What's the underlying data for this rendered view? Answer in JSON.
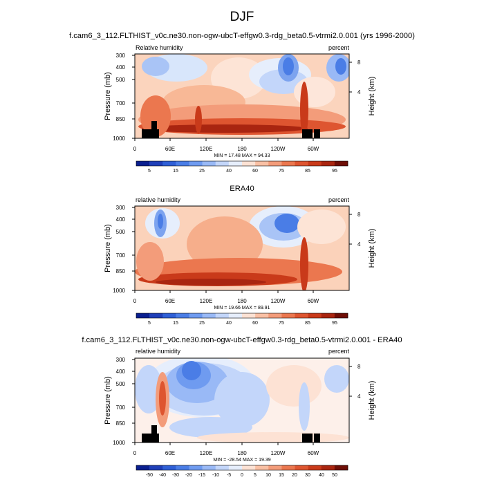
{
  "figure": {
    "title": "DJF"
  },
  "chart_data": [
    {
      "type": "heatmap",
      "title": "f.cam6_3_112.FLTHIST_v0c.ne30.non-ogw-ubcT-effgw0.3-rdg_beta0.5-vtrmi2.0.001 (yrs 1996-2000)",
      "left_label": "Relative humidity",
      "right_label": "percent",
      "ylabel": "Pressure (mb)",
      "ylabel_right": "Height (km)",
      "x_ticks": [
        "0",
        "60E",
        "120E",
        "180",
        "120W",
        "60W"
      ],
      "y_ticks": [
        "300",
        "400",
        "500",
        "700",
        "850",
        "1000"
      ],
      "y2_ticks": [
        "8",
        "4"
      ],
      "stats": "MIN =  17.48  MAX =  94.33",
      "min": 17.48,
      "max": 94.33,
      "colorbar_labels": [
        "5",
        "15",
        "25",
        "40",
        "60",
        "75",
        "85",
        "95"
      ],
      "colorbar_colors": [
        "#0a1f8f",
        "#1f3fb8",
        "#2f5fd6",
        "#4a7de6",
        "#6f9bf0",
        "#99b9f6",
        "#c3d6fa",
        "#e6eefc",
        "#fde2d4",
        "#f9c0a4",
        "#f39c7a",
        "#eb774f",
        "#de5530",
        "#c93a1a",
        "#a92510",
        "#6e0e06"
      ],
      "note": "Black boxes mark topography near 30E and 60W-70W"
    },
    {
      "type": "heatmap",
      "title": "ERA40",
      "left_label": "relative humidity",
      "right_label": "percent",
      "ylabel": "Pressure (mb)",
      "ylabel_right": "Height (km)",
      "x_ticks": [
        "0",
        "60E",
        "120E",
        "180",
        "120W",
        "60W"
      ],
      "y_ticks": [
        "300",
        "400",
        "500",
        "700",
        "850",
        "1000"
      ],
      "y2_ticks": [
        "8",
        "4"
      ],
      "stats": "MIN =  19.66  MAX =  89.91",
      "min": 19.66,
      "max": 89.91,
      "colorbar_labels": [
        "5",
        "15",
        "25",
        "40",
        "60",
        "75",
        "85",
        "95"
      ],
      "colorbar_colors": [
        "#0a1f8f",
        "#1f3fb8",
        "#2f5fd6",
        "#4a7de6",
        "#6f9bf0",
        "#99b9f6",
        "#c3d6fa",
        "#e6eefc",
        "#fde2d4",
        "#f9c0a4",
        "#f39c7a",
        "#eb774f",
        "#de5530",
        "#c93a1a",
        "#a92510",
        "#6e0e06"
      ]
    },
    {
      "type": "heatmap",
      "title": "f.cam6_3_112.FLTHIST_v0c.ne30.non-ogw-ubcT-effgw0.3-rdg_beta0.5-vtrmi2.0.001 - ERA40",
      "left_label": "relative humidity",
      "right_label": "percent",
      "ylabel": "Pressure (mb)",
      "ylabel_right": "Height (km)",
      "x_ticks": [
        "0",
        "60E",
        "120E",
        "180",
        "120W",
        "60W"
      ],
      "y_ticks": [
        "300",
        "400",
        "500",
        "700",
        "850",
        "1000"
      ],
      "y2_ticks": [
        "8",
        "4"
      ],
      "stats": "MIN = -28.54  MAX =  19.39",
      "min": -28.54,
      "max": 19.39,
      "colorbar_labels": [
        "-50",
        "-40",
        "-30",
        "-20",
        "-15",
        "-10",
        "-5",
        "0",
        "5",
        "10",
        "15",
        "20",
        "30",
        "40",
        "50"
      ],
      "colorbar_colors": [
        "#0a1f8f",
        "#1f3fb8",
        "#2f5fd6",
        "#4a7de6",
        "#6f9bf0",
        "#99b9f6",
        "#c3d6fa",
        "#e6eefc",
        "#fde2d4",
        "#f9c0a4",
        "#f39c7a",
        "#eb774f",
        "#de5530",
        "#c93a1a",
        "#a92510",
        "#6e0e06"
      ],
      "note": "Black boxes mark topography near 30E and 60W-70W"
    }
  ]
}
